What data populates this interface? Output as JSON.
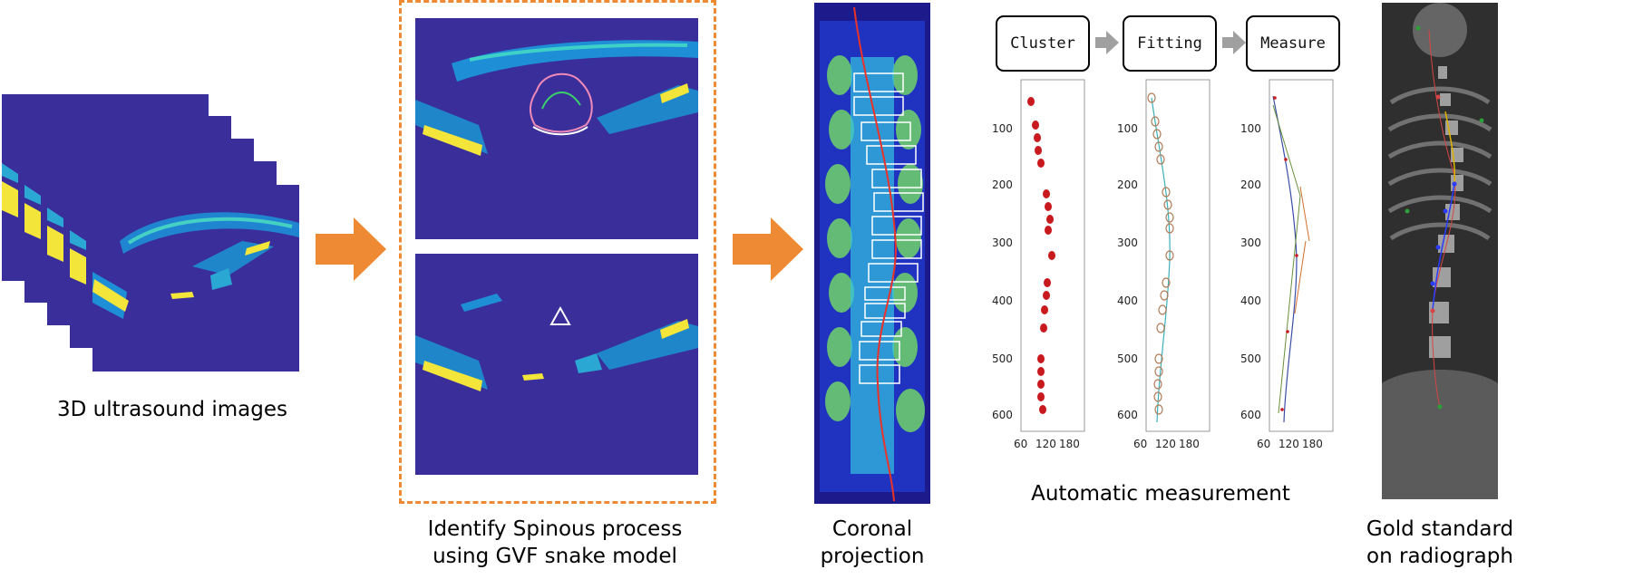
{
  "captions": {
    "ultrasound": "3D ultrasound images",
    "snake_line1": "Identify Spinous process",
    "snake_line2": "using GVF snake model",
    "coronal_line1": "Coronal",
    "coronal_line2": "projection",
    "auto": "Automatic measurement",
    "gold_line1": "Gold standard",
    "gold_line2": "on radiograph"
  },
  "steps": [
    "Cluster",
    "Fitting",
    "Measure"
  ],
  "axis": {
    "y_ticks": [
      "100",
      "200",
      "300",
      "400",
      "500",
      "600"
    ],
    "x_ticks": [
      "60",
      "120",
      "180"
    ]
  },
  "colors": {
    "arrow": "#ef8a34",
    "gray_arrow": "#a0a0a0",
    "us_bg": "#3a2f9a",
    "dash": "#ef8a34",
    "cluster_dot": "#c8191e"
  }
}
